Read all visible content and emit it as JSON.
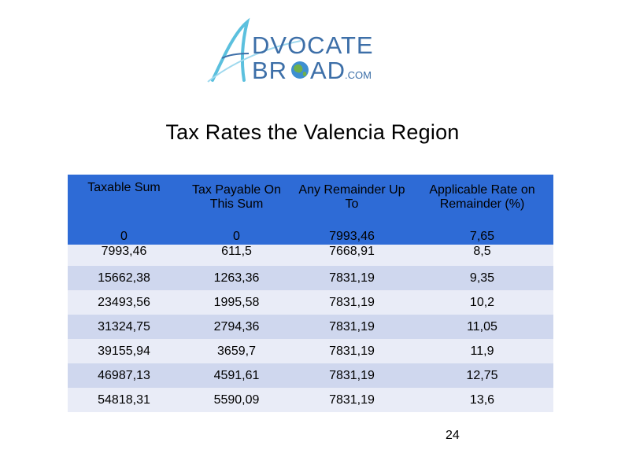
{
  "logo": {
    "line1": "DVOCATE",
    "line2_a": "BR",
    "line2_b": "AD",
    "suffix": ".COM"
  },
  "title": "Tax Rates the Valencia Region",
  "table": {
    "headers": [
      "Taxable Sum",
      "Tax Payable On This Sum",
      "Any Remainder Up To",
      "Applicable Rate on Remainder (%)"
    ],
    "rows": [
      [
        "0",
        "0",
        "7993,46",
        "7,65"
      ],
      [
        "7993,46",
        "611,5",
        "7668,91",
        "8,5"
      ],
      [
        "15662,38",
        "1263,36",
        "7831,19",
        "9,35"
      ],
      [
        "23493,56",
        "1995,58",
        "7831,19",
        "10,2"
      ],
      [
        "31324,75",
        "2794,36",
        "7831,19",
        "11,05"
      ],
      [
        "39155,94",
        "3659,7",
        "7831,19",
        "11,9"
      ],
      [
        "46987,13",
        "4591,61",
        "7831,19",
        "12,75"
      ],
      [
        "54818,31",
        "5590,09",
        "7831,19",
        "13,6"
      ]
    ]
  },
  "page_number": "24",
  "colors": {
    "header_bg": "#2e6bd6",
    "row_dark": "#cfd7ee",
    "row_light": "#e9ecf7",
    "logo_blue": "#3d6fa8",
    "logo_cyan": "#5bc0de"
  }
}
